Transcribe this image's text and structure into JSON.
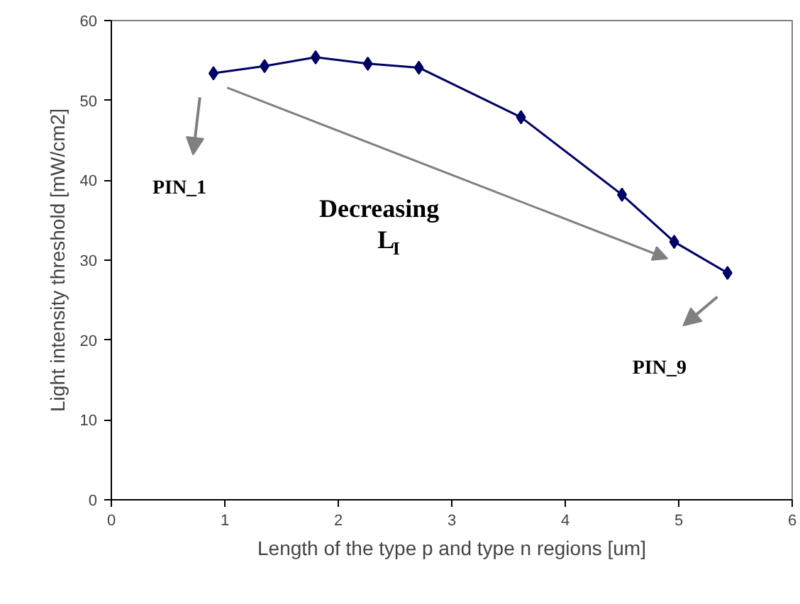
{
  "chart_data": {
    "type": "line",
    "xlabel": "Length of the type p and type n regions [um]",
    "ylabel": "Light intensity threshold [mW/cm2]",
    "x": [
      0.9,
      1.35,
      1.8,
      2.26,
      2.71,
      3.61,
      4.5,
      4.96,
      5.43
    ],
    "series": [
      {
        "color": "#000066",
        "values": [
          53.4,
          54.3,
          55.4,
          54.6,
          54.1,
          47.9,
          38.2,
          32.3,
          28.4
        ]
      }
    ],
    "xlim": [
      0,
      6
    ],
    "ylim": [
      0,
      60
    ],
    "xticks": [
      0,
      1,
      2,
      3,
      4,
      5,
      6
    ],
    "yticks": [
      0,
      10,
      20,
      30,
      40,
      50,
      60
    ],
    "grid": false,
    "marker": "diamond",
    "line_style": "solid",
    "annotations": [
      "PIN_1",
      "Decreasing L$_{I}$",
      "PIN_9"
    ]
  }
}
